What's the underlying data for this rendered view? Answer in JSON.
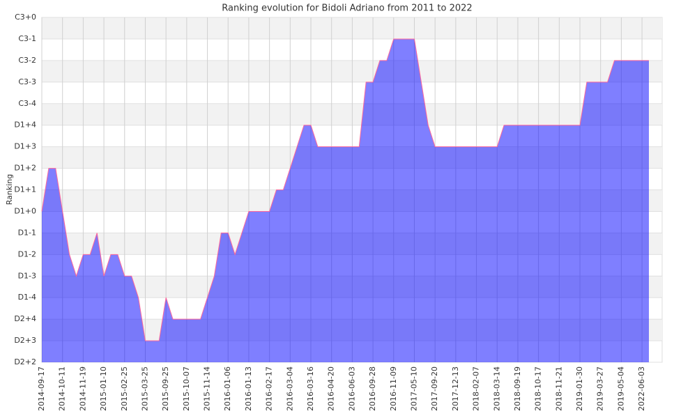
{
  "chart_data": {
    "type": "area",
    "title": "Ranking evolution for Bidoli Adriano from 2011 to 2022",
    "y_label": "Ranking",
    "categories": [
      "2014-09-17",
      null,
      null,
      "2014-10-11",
      null,
      null,
      "2014-11-19",
      null,
      null,
      "2015-01-10",
      null,
      null,
      "2015-02-25",
      null,
      null,
      "2015-03-25",
      null,
      null,
      "2015-09-25",
      null,
      null,
      "2015-10-07",
      null,
      null,
      "2015-11-14",
      null,
      null,
      "2016-01-06",
      null,
      null,
      "2016-01-13",
      null,
      null,
      "2016-02-17",
      null,
      null,
      "2016-03-04",
      null,
      null,
      "2016-03-16",
      null,
      null,
      "2016-04-20",
      null,
      null,
      "2016-06-03",
      null,
      null,
      "2016-09-28",
      null,
      null,
      "2016-11-09",
      null,
      null,
      "2017-05-10",
      null,
      null,
      "2017-09-20",
      null,
      null,
      "2017-12-13",
      null,
      null,
      "2018-02-07",
      null,
      null,
      "2018-03-14",
      null,
      null,
      "2018-09-19",
      null,
      null,
      "2018-10-17",
      null,
      null,
      "2018-11-21",
      null,
      null,
      "2019-01-30",
      null,
      null,
      "2019-03-27",
      null,
      null,
      "2019-05-04",
      null,
      null,
      "2022-06-03",
      null
    ],
    "series": [
      {
        "name": "Ranking",
        "color": "#0000ff",
        "line_color": "#ff6699",
        "values": [
          7,
          9,
          9,
          7,
          5,
          4,
          5,
          5,
          6,
          4,
          5,
          5,
          4,
          4,
          3,
          1,
          1,
          1,
          3,
          2,
          2,
          2,
          2,
          2,
          3,
          4,
          6,
          6,
          5,
          6,
          7,
          7,
          7,
          7,
          8,
          8,
          9,
          10,
          11,
          11,
          10,
          10,
          10,
          10,
          10,
          10,
          10,
          13,
          13,
          14,
          14,
          15,
          15,
          15,
          15,
          13,
          11,
          10,
          10,
          10,
          10,
          10,
          10,
          10,
          10,
          10,
          10,
          11,
          11,
          11,
          11,
          11,
          11,
          11,
          11,
          11,
          11,
          11,
          11,
          13,
          13,
          13,
          13,
          14,
          14,
          14,
          14,
          14,
          14
        ]
      }
    ],
    "ylim": [
      0,
      16
    ],
    "yticks": [
      {
        "value": 0,
        "label": "D2+2"
      },
      {
        "value": 1,
        "label": "D2+3"
      },
      {
        "value": 2,
        "label": "D2+4"
      },
      {
        "value": 3,
        "label": "D1-4"
      },
      {
        "value": 4,
        "label": "D1-3"
      },
      {
        "value": 5,
        "label": "D1-2"
      },
      {
        "value": 6,
        "label": "D1-1"
      },
      {
        "value": 7,
        "label": "D1+0"
      },
      {
        "value": 8,
        "label": "D1+1"
      },
      {
        "value": 9,
        "label": "D1+2"
      },
      {
        "value": 10,
        "label": "D1+3"
      },
      {
        "value": 11,
        "label": "D1+4"
      },
      {
        "value": 12,
        "label": "C3-4"
      },
      {
        "value": 13,
        "label": "C3-3"
      },
      {
        "value": 14,
        "label": "C3-2"
      },
      {
        "value": 15,
        "label": "C3-1"
      },
      {
        "value": 16,
        "label": "C3+0"
      }
    ],
    "grid": true
  }
}
